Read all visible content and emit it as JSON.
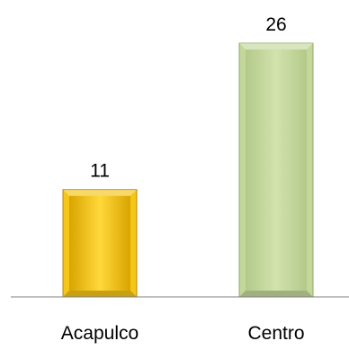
{
  "chart_data": {
    "type": "bar",
    "categories": [
      "Acapulco",
      "Centro"
    ],
    "values": [
      11,
      26
    ],
    "ylim": [
      0,
      26
    ],
    "grid": false,
    "legend": "none",
    "colors": {
      "bar_fills": [
        "#f5c518",
        "#c4d79b"
      ],
      "bar_edges": [
        "#b8860b",
        "#8fa86a"
      ],
      "axis": "#808080"
    }
  }
}
